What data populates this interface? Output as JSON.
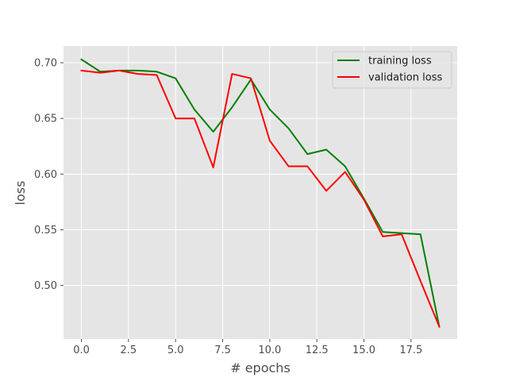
{
  "chart_data": {
    "type": "line",
    "xlabel": "# epochs",
    "ylabel": "loss",
    "xlim": [
      -0.95,
      19.95
    ],
    "ylim": [
      0.452,
      0.715
    ],
    "xticks": [
      0,
      2.5,
      5,
      7.5,
      10,
      12.5,
      15,
      17.5
    ],
    "xtick_labels": [
      "0.0",
      "2.5",
      "5.0",
      "7.5",
      "10.0",
      "12.5",
      "15.0",
      "17.5"
    ],
    "yticks": [
      0.5,
      0.55,
      0.6,
      0.65,
      0.7
    ],
    "ytick_labels": [
      "0.50",
      "0.55",
      "0.60",
      "0.65",
      "0.70"
    ],
    "grid": true,
    "legend_position": "top-right",
    "x": [
      0,
      1,
      2,
      3,
      4,
      5,
      6,
      7,
      8,
      9,
      10,
      11,
      12,
      13,
      14,
      15,
      16,
      17,
      18,
      19
    ],
    "series": [
      {
        "name": "training loss",
        "color": "#008000",
        "values": [
          0.703,
          0.692,
          0.693,
          0.693,
          0.692,
          0.686,
          0.658,
          0.638,
          0.66,
          0.685,
          0.658,
          0.641,
          0.618,
          0.622,
          0.607,
          0.578,
          0.548,
          0.547,
          0.546,
          0.463
        ]
      },
      {
        "name": "validation loss",
        "color": "#ff0000",
        "values": [
          0.693,
          0.691,
          0.693,
          0.69,
          0.689,
          0.65,
          0.65,
          0.606,
          0.69,
          0.686,
          0.63,
          0.607,
          0.607,
          0.585,
          0.602,
          0.577,
          0.544,
          0.546,
          0.504,
          0.463
        ]
      }
    ],
    "colors": {
      "plot_background": "#e5e5e5",
      "grid": "#ffffff",
      "tick_text": "#4d4d4d"
    }
  }
}
